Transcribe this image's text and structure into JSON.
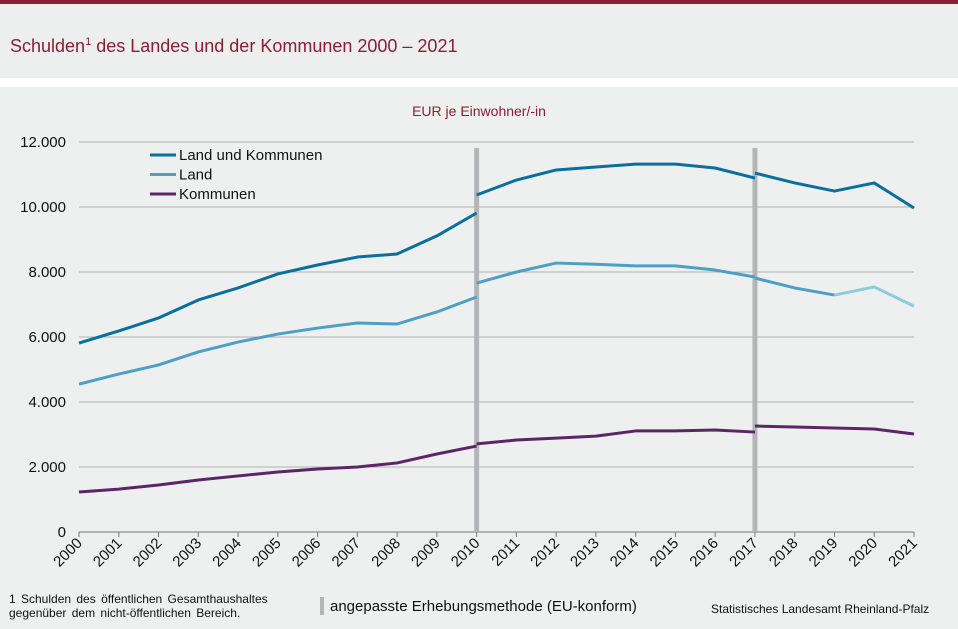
{
  "header": {
    "title_main": "Schulden",
    "title_sup": "1",
    "title_rest": " des Landes und der Kommunen 2000 – 2021"
  },
  "footer": {
    "note_line1": "1 Schulden des öffentlichen Gesamthaushaltes",
    "note_line2": "gegenüber dem nicht-öffentlichen Bereich.",
    "method_label": "angepasste Erhebungsmethode (EU-konform)",
    "source": "Statistisches Landesamt Rheinland-Pfalz"
  },
  "colors": {
    "brand": "#8b1d35",
    "land_und_kommunen": "#0a6e9e",
    "land": "#4d9fc4",
    "land_light": "#8ccbe0",
    "kommunen": "#5c2566",
    "method_break": "#b3b5b6",
    "grid": "#b0b0b0"
  },
  "chart_data": {
    "type": "line",
    "title": "Schulden des Landes und der Kommunen 2000 – 2021",
    "subtitle": "EUR je Einwohner/-in",
    "xlabel": "",
    "ylabel": "EUR je Einwohner/-in",
    "ylim": [
      0,
      12000
    ],
    "yticks": [
      0,
      2000,
      4000,
      6000,
      8000,
      10000,
      12000
    ],
    "ytick_labels": [
      "0",
      "2.000",
      "4.000",
      "6.000",
      "8.000",
      "10.000",
      "12.000"
    ],
    "categories": [
      "2000",
      "2001",
      "2002",
      "2003",
      "2004",
      "2005",
      "2006",
      "2007",
      "2008",
      "2009",
      "2010",
      "2011",
      "2012",
      "2013",
      "2014",
      "2015",
      "2016",
      "2017",
      "2018",
      "2019",
      "2020",
      "2021"
    ],
    "grid": true,
    "legend": "top-left",
    "method_breaks": [
      "2010",
      "2017"
    ],
    "series": [
      {
        "name": "Land und Kommunen",
        "color_key": "land_und_kommunen",
        "segments": [
          {
            "from": "2000",
            "values": [
              5815,
              6185,
              6585,
              7140,
              7510,
              7940,
              8215,
              8460,
              8555,
              9110,
              9815
            ]
          },
          {
            "from": "2010",
            "values": [
              10370,
              10830,
              11140,
              11230,
              11320,
              11320,
              11200,
              10890
            ]
          },
          {
            "from": "2017",
            "values": [
              11045,
              10740,
              10490,
              10740,
              9970
            ]
          }
        ]
      },
      {
        "name": "Land",
        "color_key": "land",
        "segments": [
          {
            "from": "2000",
            "values": [
              4550,
              4860,
              5140,
              5540,
              5845,
              6090,
              6275,
              6430,
              6400,
              6770,
              7230
            ]
          },
          {
            "from": "2010",
            "values": [
              7660,
              8000,
              8275,
              8240,
              8190,
              8190,
              8060,
              7845
            ]
          },
          {
            "from": "2017",
            "values": [
              7815,
              7510,
              7290
            ],
            "light_tail": [
              7290,
              7540,
              6950
            ]
          }
        ]
      },
      {
        "name": "Kommunen",
        "color_key": "kommunen",
        "segments": [
          {
            "from": "2000",
            "values": [
              1230,
              1320,
              1445,
              1600,
              1725,
              1845,
              1940,
              2000,
              2125,
              2400,
              2645
            ]
          },
          {
            "from": "2010",
            "values": [
              2710,
              2830,
              2890,
              2950,
              3110,
              3110,
              3140,
              3075
            ]
          },
          {
            "from": "2017",
            "values": [
              3260,
              3230,
              3200,
              3170,
              3015
            ]
          }
        ]
      }
    ]
  }
}
